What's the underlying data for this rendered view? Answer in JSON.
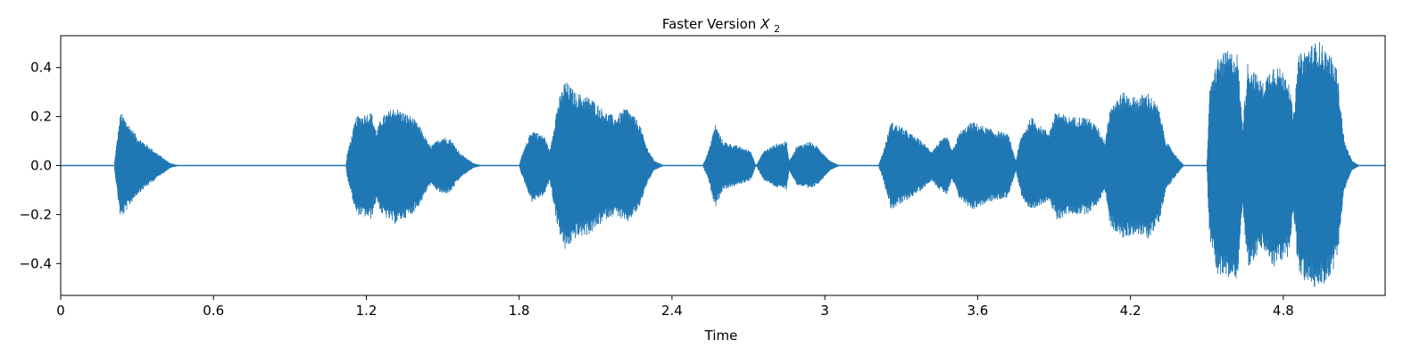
{
  "chart_data": {
    "type": "area",
    "title": "Faster Version",
    "title_subscript_var": "X",
    "title_subscript": "2",
    "xlabel": "Time",
    "ylabel": "",
    "xlim": [
      0,
      5.2
    ],
    "ylim": [
      -0.53,
      0.53
    ],
    "xticks": [
      0,
      0.6,
      1.2,
      1.8,
      2.4,
      3.0,
      3.6,
      4.2,
      4.8
    ],
    "xtick_labels": [
      "0",
      "0.6",
      "1.2",
      "1.8",
      "2.4",
      "3",
      "3.6",
      "4.2",
      "4.8"
    ],
    "yticks": [
      -0.4,
      -0.2,
      0.0,
      0.2,
      0.4
    ],
    "ytick_labels": [
      "−0.4",
      "−0.2",
      "0.0",
      "0.2",
      "0.4"
    ],
    "grid": false,
    "color": "#1f77b4",
    "series": [
      {
        "envelope_upper": [
          [
            0.0,
            0.0
          ],
          [
            0.21,
            0.0
          ],
          [
            0.215,
            0.05
          ],
          [
            0.235,
            0.22
          ],
          [
            0.3,
            0.12
          ],
          [
            0.38,
            0.05
          ],
          [
            0.43,
            0.01
          ],
          [
            0.47,
            0.0
          ],
          [
            1.12,
            0.0
          ],
          [
            1.125,
            0.05
          ],
          [
            1.16,
            0.2
          ],
          [
            1.22,
            0.22
          ],
          [
            1.24,
            0.14
          ],
          [
            1.26,
            0.2
          ],
          [
            1.31,
            0.24
          ],
          [
            1.38,
            0.2
          ],
          [
            1.41,
            0.16
          ],
          [
            1.45,
            0.08
          ],
          [
            1.5,
            0.12
          ],
          [
            1.53,
            0.11
          ],
          [
            1.57,
            0.05
          ],
          [
            1.62,
            0.01
          ],
          [
            1.66,
            0.0
          ],
          [
            1.8,
            0.0
          ],
          [
            1.81,
            0.04
          ],
          [
            1.85,
            0.15
          ],
          [
            1.9,
            0.12
          ],
          [
            1.92,
            0.06
          ],
          [
            1.95,
            0.25
          ],
          [
            1.98,
            0.35
          ],
          [
            2.02,
            0.3
          ],
          [
            2.08,
            0.28
          ],
          [
            2.14,
            0.22
          ],
          [
            2.18,
            0.2
          ],
          [
            2.22,
            0.24
          ],
          [
            2.27,
            0.18
          ],
          [
            2.3,
            0.08
          ],
          [
            2.33,
            0.02
          ],
          [
            2.37,
            0.0
          ],
          [
            2.52,
            0.0
          ],
          [
            2.54,
            0.05
          ],
          [
            2.57,
            0.17
          ],
          [
            2.6,
            0.1
          ],
          [
            2.66,
            0.08
          ],
          [
            2.71,
            0.06
          ],
          [
            2.73,
            0.0
          ],
          [
            2.76,
            0.06
          ],
          [
            2.81,
            0.09
          ],
          [
            2.85,
            0.1
          ],
          [
            2.86,
            0.02
          ],
          [
            2.89,
            0.08
          ],
          [
            2.94,
            0.1
          ],
          [
            2.98,
            0.07
          ],
          [
            3.02,
            0.02
          ],
          [
            3.06,
            0.0
          ],
          [
            3.21,
            0.0
          ],
          [
            3.23,
            0.06
          ],
          [
            3.26,
            0.18
          ],
          [
            3.3,
            0.16
          ],
          [
            3.38,
            0.1
          ],
          [
            3.42,
            0.06
          ],
          [
            3.45,
            0.1
          ],
          [
            3.48,
            0.12
          ],
          [
            3.5,
            0.06
          ],
          [
            3.53,
            0.14
          ],
          [
            3.58,
            0.18
          ],
          [
            3.65,
            0.15
          ],
          [
            3.72,
            0.13
          ],
          [
            3.75,
            0.02
          ],
          [
            3.77,
            0.12
          ],
          [
            3.81,
            0.2
          ],
          [
            3.85,
            0.16
          ],
          [
            3.88,
            0.14
          ],
          [
            3.91,
            0.23
          ],
          [
            3.95,
            0.2
          ],
          [
            4.03,
            0.2
          ],
          [
            4.07,
            0.16
          ],
          [
            4.1,
            0.1
          ],
          [
            4.12,
            0.25
          ],
          [
            4.17,
            0.3
          ],
          [
            4.22,
            0.28
          ],
          [
            4.27,
            0.3
          ],
          [
            4.31,
            0.24
          ],
          [
            4.34,
            0.1
          ],
          [
            4.38,
            0.04
          ],
          [
            4.41,
            0.0
          ],
          [
            4.5,
            0.0
          ],
          [
            4.51,
            0.3
          ],
          [
            4.54,
            0.44
          ],
          [
            4.58,
            0.47
          ],
          [
            4.62,
            0.46
          ],
          [
            4.64,
            0.16
          ],
          [
            4.66,
            0.42
          ],
          [
            4.72,
            0.34
          ],
          [
            4.76,
            0.42
          ],
          [
            4.82,
            0.37
          ],
          [
            4.84,
            0.2
          ],
          [
            4.86,
            0.45
          ],
          [
            4.9,
            0.49
          ],
          [
            4.94,
            0.51
          ],
          [
            4.98,
            0.46
          ],
          [
            5.01,
            0.4
          ],
          [
            5.04,
            0.1
          ],
          [
            5.07,
            0.02
          ],
          [
            5.1,
            0.0
          ],
          [
            5.2,
            0.0
          ]
        ]
      }
    ]
  }
}
